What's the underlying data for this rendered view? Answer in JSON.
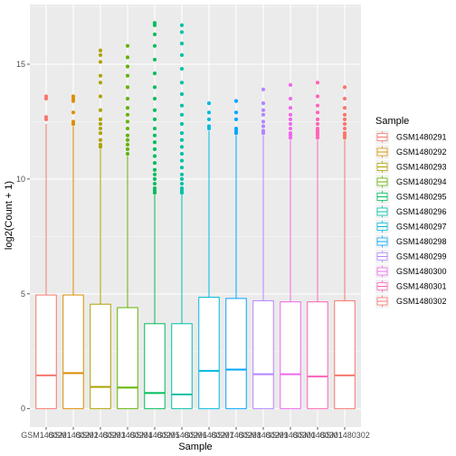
{
  "chart_data": {
    "type": "boxplot",
    "xlabel": "Sample",
    "ylabel": "log2(Count + 1)",
    "ylim": [
      -0.8,
      17.6
    ],
    "yticks": [
      0,
      5,
      10,
      15
    ],
    "grid": true,
    "legend": {
      "title": "Sample",
      "position": "right"
    },
    "series": [
      {
        "name": "GSM1480291",
        "color": "#F8766D",
        "q1": 0,
        "median": 1.45,
        "q3": 4.95,
        "whisker_low": 0,
        "whisker_high": 12.4,
        "outliers": [
          12.6,
          12.7,
          13.5,
          13.6
        ]
      },
      {
        "name": "GSM1480292",
        "color": "#DB8E00",
        "q1": 0,
        "median": 1.55,
        "q3": 4.95,
        "whisker_low": 0,
        "whisker_high": 12.3,
        "outliers": [
          12.4,
          12.5,
          12.9,
          13.4,
          13.5,
          13.6
        ]
      },
      {
        "name": "GSM1480293",
        "color": "#AEA200",
        "q1": 0,
        "median": 0.95,
        "q3": 4.55,
        "whisker_low": 0,
        "whisker_high": 11.3,
        "outliers": [
          11.4,
          11.5,
          11.7,
          12.0,
          12.2,
          12.4,
          12.6,
          13.0,
          13.6,
          14.2,
          14.5,
          15.1,
          15.4,
          15.6
        ]
      },
      {
        "name": "GSM1480294",
        "color": "#64B200",
        "q1": 0,
        "median": 0.92,
        "q3": 4.4,
        "whisker_low": 0,
        "whisker_high": 11.0,
        "outliers": [
          11.1,
          11.3,
          11.5,
          11.7,
          11.9,
          12.2,
          12.5,
          12.8,
          13.1,
          13.5,
          14.0,
          14.5,
          14.9,
          15.3,
          15.8
        ]
      },
      {
        "name": "GSM1480295",
        "color": "#00BD5C",
        "q1": 0,
        "median": 0.68,
        "q3": 3.7,
        "whisker_low": 0,
        "whisker_high": 9.3,
        "outliers": [
          9.4,
          9.5,
          9.6,
          9.8,
          10.0,
          10.2,
          10.4,
          10.7,
          11.0,
          11.3,
          11.6,
          11.9,
          12.2,
          12.6,
          13.0,
          13.5,
          14.0,
          14.6,
          15.2,
          15.8,
          16.3,
          16.7,
          16.8
        ]
      },
      {
        "name": "GSM1480296",
        "color": "#00C1A7",
        "q1": 0,
        "median": 0.62,
        "q3": 3.7,
        "whisker_low": 0,
        "whisker_high": 9.3,
        "outliers": [
          9.4,
          9.5,
          9.6,
          9.8,
          10.0,
          10.2,
          10.5,
          10.8,
          11.1,
          11.4,
          11.7,
          12.0,
          12.4,
          12.8,
          13.2,
          13.7,
          14.2,
          14.8,
          15.4,
          15.9,
          16.4,
          16.7
        ]
      },
      {
        "name": "GSM1480297",
        "color": "#00BADE",
        "q1": 0,
        "median": 1.65,
        "q3": 4.85,
        "whisker_low": 0,
        "whisker_high": 12.1,
        "outliers": [
          12.2,
          12.3,
          12.6,
          12.9,
          13.3
        ]
      },
      {
        "name": "GSM1480298",
        "color": "#00A6FF",
        "q1": 0,
        "median": 1.7,
        "q3": 4.8,
        "whisker_low": 0,
        "whisker_high": 11.9,
        "outliers": [
          12.0,
          12.1,
          12.2,
          12.6,
          12.9,
          13.4
        ]
      },
      {
        "name": "GSM1480299",
        "color": "#B385FF",
        "q1": 0,
        "median": 1.5,
        "q3": 4.7,
        "whisker_low": 0,
        "whisker_high": 11.9,
        "outliers": [
          12.0,
          12.1,
          12.3,
          12.5,
          12.8,
          13.0,
          13.3,
          13.9
        ]
      },
      {
        "name": "GSM1480300",
        "color": "#EF67EB",
        "q1": 0,
        "median": 1.5,
        "q3": 4.65,
        "whisker_low": 0,
        "whisker_high": 11.7,
        "outliers": [
          11.8,
          11.9,
          12.0,
          12.2,
          12.4,
          12.6,
          12.8,
          13.1,
          13.5,
          14.1
        ]
      },
      {
        "name": "GSM1480301",
        "color": "#FF63B6",
        "q1": 0,
        "median": 1.4,
        "q3": 4.65,
        "whisker_low": 0,
        "whisker_high": 11.7,
        "outliers": [
          11.8,
          11.9,
          12.0,
          12.1,
          12.2,
          12.4,
          12.6,
          12.9,
          13.2,
          13.6,
          14.2
        ]
      },
      {
        "name": "GSM1480302",
        "color": "#F8766D",
        "q1": 0,
        "median": 1.45,
        "q3": 4.7,
        "whisker_low": 0,
        "whisker_high": 11.7,
        "outliers": [
          11.8,
          11.9,
          12.0,
          12.2,
          12.4,
          12.6,
          12.8,
          13.1,
          13.5,
          14.0
        ]
      }
    ]
  }
}
